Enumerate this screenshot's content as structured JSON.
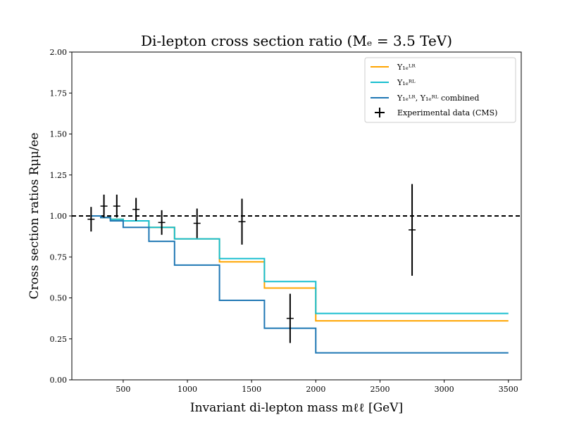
{
  "chart_data": {
    "type": "line",
    "title": "Di-lepton cross section ratio (Mₑ = 3.5 TeV)",
    "xlabel": "Invariant di-lepton mass mℓℓ [GeV]",
    "ylabel": "Cross section ratios Rμμ/ee",
    "xlim": [
      100,
      3600
    ],
    "ylim": [
      0.0,
      2.0
    ],
    "xticks": [
      500,
      1000,
      1500,
      2000,
      2500,
      3000,
      3500
    ],
    "xtick_labels": [
      "500",
      "1000",
      "1500",
      "2000",
      "2500",
      "3000",
      "3500"
    ],
    "yticks": [
      0.0,
      0.25,
      0.5,
      0.75,
      1.0,
      1.25,
      1.5,
      1.75,
      2.0
    ],
    "ytick_labels": [
      "0.00",
      "0.25",
      "0.50",
      "0.75",
      "1.00",
      "1.25",
      "1.50",
      "1.75",
      "2.00"
    ],
    "grid": false,
    "legend_position": "upper right",
    "reference_line": {
      "y": 1.0,
      "style": "dashed",
      "color": "#000000"
    },
    "bin_edges": [
      250,
      325,
      400,
      500,
      700,
      900,
      1250,
      1600,
      2000,
      3500
    ],
    "series": [
      {
        "name": "Y₁ₑᴸᴿ",
        "color": "#ffa500",
        "values": [
          1.0,
          0.99,
          0.98,
          0.97,
          0.93,
          0.86,
          0.72,
          0.56,
          0.36
        ]
      },
      {
        "name": "Y₁ₑᴿᴸ",
        "color": "#17becf",
        "values": [
          1.0,
          0.99,
          0.98,
          0.97,
          0.93,
          0.86,
          0.74,
          0.6,
          0.405
        ]
      },
      {
        "name": "Y₁ₑᴸᴿ, Y₁ₑᴿᴸ combined",
        "color": "#1f77b4",
        "values": [
          1.0,
          0.99,
          0.97,
          0.93,
          0.845,
          0.7,
          0.485,
          0.315,
          0.165
        ]
      }
    ],
    "data_points": {
      "name": "Experimental data (CMS)",
      "color": "#000000",
      "points": [
        {
          "x": 250,
          "y": 0.98,
          "yerr": 0.075
        },
        {
          "x": 350,
          "y": 1.06,
          "yerr": 0.07
        },
        {
          "x": 450,
          "y": 1.06,
          "yerr": 0.07
        },
        {
          "x": 600,
          "y": 1.04,
          "yerr": 0.07
        },
        {
          "x": 800,
          "y": 0.96,
          "yerr": 0.075
        },
        {
          "x": 1075,
          "y": 0.955,
          "yerr": 0.09
        },
        {
          "x": 1425,
          "y": 0.965,
          "yerr": 0.14
        },
        {
          "x": 1800,
          "y": 0.375,
          "yerr": 0.15
        },
        {
          "x": 2750,
          "y": 0.915,
          "yerr": 0.28
        }
      ]
    }
  }
}
